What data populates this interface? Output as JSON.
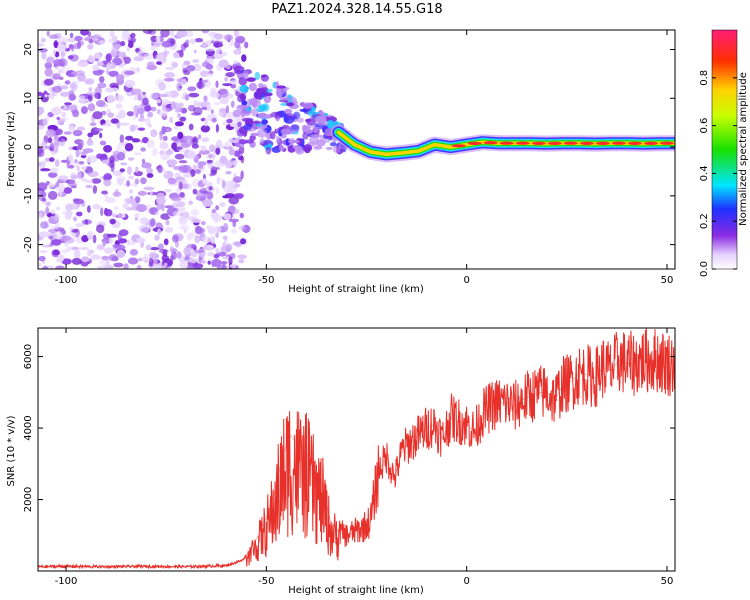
{
  "title": "PAZ1.2024.328.14.55.G18",
  "chart_data": [
    {
      "type": "heatmap",
      "title": "PAZ1.2024.328.14.55.G18",
      "xlabel": "Height of straight line (km)",
      "ylabel": "Frequency (Hz)",
      "xlim": [
        -107,
        52
      ],
      "ylim": [
        -25,
        24
      ],
      "xticks": [
        -100,
        -50,
        0,
        50
      ],
      "xtick_labels": [
        "-100",
        "-50",
        "0",
        "50"
      ],
      "yticks": [
        20,
        10,
        0,
        -10,
        -20
      ],
      "ytick_labels": [
        "20",
        "10",
        "0",
        "-10",
        "-20"
      ],
      "colorbar": {
        "label": "Normalized spectral amplitude",
        "range": [
          0,
          1
        ],
        "ticks": [
          0.0,
          0.2,
          0.4,
          0.6,
          0.8
        ],
        "tick_labels": [
          "0.0",
          "0.2",
          "0.4",
          "0.6",
          "0.8"
        ]
      },
      "ridge": {
        "x": [
          -32,
          -28,
          -24,
          -20,
          -16,
          -12,
          -8,
          -4,
          0,
          4,
          8,
          12,
          16,
          20,
          24,
          28,
          32,
          36,
          40,
          44,
          48,
          52
        ],
        "y": [
          3,
          0.5,
          -1,
          -1.5,
          -1.2,
          -0.8,
          0.5,
          0,
          0.5,
          1,
          0.8,
          0.8,
          0.8,
          0.7,
          0.8,
          0.8,
          0.7,
          0.8,
          0.8,
          0.7,
          0.8,
          0.8
        ]
      },
      "grid": false
    },
    {
      "type": "line",
      "xlabel": "Height of straight line (km)",
      "ylabel": "SNR (10 * v/v)",
      "xlim": [
        -107,
        52
      ],
      "ylim": [
        0,
        6800
      ],
      "xticks": [
        -100,
        -50,
        0,
        50
      ],
      "xtick_labels": [
        "-100",
        "-50",
        "0",
        "50"
      ],
      "yticks": [
        2000,
        4000,
        6000
      ],
      "ytick_labels": [
        "2000",
        "4000",
        "6000"
      ],
      "series": [
        {
          "color": "#e8302a",
          "x": [
            -107,
            -100,
            -90,
            -80,
            -70,
            -60,
            -56,
            -54,
            -52,
            -50,
            -48,
            -46,
            -44,
            -42,
            -40,
            -38,
            -36,
            -34,
            -32,
            -30,
            -28,
            -26,
            -24,
            -22,
            -20,
            -18,
            -16,
            -14,
            -12,
            -10,
            -8,
            -6,
            -4,
            -2,
            0,
            2,
            4,
            6,
            8,
            10,
            12,
            14,
            16,
            18,
            20,
            22,
            24,
            26,
            28,
            30,
            32,
            34,
            36,
            38,
            40,
            42,
            44,
            46,
            48,
            50,
            52
          ],
          "y": [
            120,
            130,
            120,
            130,
            120,
            150,
            300,
            600,
            1000,
            1500,
            2200,
            3200,
            3800,
            3500,
            3300,
            2800,
            2400,
            1400,
            1100,
            1000,
            1100,
            1200,
            1400,
            2800,
            3200,
            2600,
            3400,
            3600,
            3800,
            4000,
            4100,
            3700,
            4300,
            4200,
            4100,
            3900,
            4400,
            4600,
            4700,
            4700,
            4600,
            4800,
            4900,
            5000,
            5000,
            4800,
            5200,
            5300,
            5500,
            5500,
            5400,
            5700,
            5600,
            5900,
            5800,
            5800,
            5900,
            5900,
            5900,
            5800,
            5800
          ]
        }
      ],
      "grid": false
    }
  ]
}
